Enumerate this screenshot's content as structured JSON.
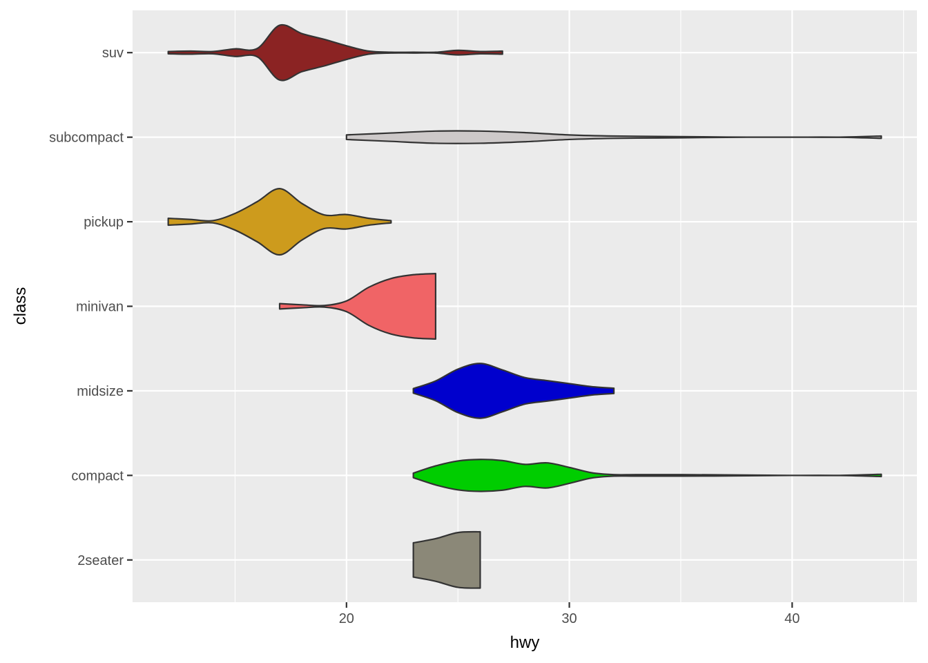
{
  "chart_data": {
    "type": "violin",
    "orientation": "horizontal",
    "xlabel": "hwy",
    "ylabel": "class",
    "xlim": [
      10.4,
      45.6
    ],
    "x_ticks": [
      20,
      30,
      40
    ],
    "grid": true,
    "background": "#ebebeb",
    "categories": [
      "2seater",
      "compact",
      "midsize",
      "minivan",
      "pickup",
      "subcompact",
      "suv"
    ],
    "series": [
      {
        "name": "2seater",
        "color": "#8b8878",
        "density": [
          [
            23,
            0.45
          ],
          [
            24,
            0.56
          ],
          [
            25,
            0.72
          ],
          [
            26,
            0.74
          ]
        ]
      },
      {
        "name": "compact",
        "color": "#00cd00",
        "density": [
          [
            23,
            0.06
          ],
          [
            24,
            0.25
          ],
          [
            25,
            0.38
          ],
          [
            26,
            0.42
          ],
          [
            27,
            0.39
          ],
          [
            28,
            0.29
          ],
          [
            29,
            0.33
          ],
          [
            30,
            0.21
          ],
          [
            31,
            0.07
          ],
          [
            32,
            0.02
          ],
          [
            33,
            0.02
          ],
          [
            35,
            0.02
          ],
          [
            38,
            0.01
          ],
          [
            40,
            0.0
          ],
          [
            42,
            0.0
          ],
          [
            44,
            0.03
          ]
        ]
      },
      {
        "name": "midsize",
        "color": "#0000cd",
        "density": [
          [
            23,
            0.06
          ],
          [
            24,
            0.26
          ],
          [
            25,
            0.57
          ],
          [
            26,
            0.72
          ],
          [
            27,
            0.55
          ],
          [
            28,
            0.35
          ],
          [
            29,
            0.27
          ],
          [
            30,
            0.19
          ],
          [
            31,
            0.11
          ],
          [
            32,
            0.07
          ]
        ]
      },
      {
        "name": "minivan",
        "color": "#f06466",
        "density": [
          [
            17,
            0.07
          ],
          [
            18,
            0.04
          ],
          [
            19,
            0.02
          ],
          [
            20,
            0.14
          ],
          [
            21,
            0.5
          ],
          [
            22,
            0.73
          ],
          [
            23,
            0.83
          ],
          [
            24,
            0.86
          ]
        ]
      },
      {
        "name": "pickup",
        "color": "#cd9b1d",
        "density": [
          [
            12,
            0.09
          ],
          [
            13,
            0.06
          ],
          [
            14,
            0.03
          ],
          [
            15,
            0.22
          ],
          [
            16,
            0.53
          ],
          [
            17,
            0.87
          ],
          [
            18,
            0.48
          ],
          [
            19,
            0.18
          ],
          [
            20,
            0.19
          ],
          [
            21,
            0.09
          ],
          [
            22,
            0.03
          ]
        ]
      },
      {
        "name": "subcompact",
        "color": "#cdc9c9",
        "density": [
          [
            20,
            0.06
          ],
          [
            22,
            0.11
          ],
          [
            24,
            0.16
          ],
          [
            26,
            0.16
          ],
          [
            28,
            0.12
          ],
          [
            30,
            0.06
          ],
          [
            32,
            0.03
          ],
          [
            34,
            0.02
          ],
          [
            36,
            0.01
          ],
          [
            38,
            0.0
          ],
          [
            40,
            0.0
          ],
          [
            42,
            0.0
          ],
          [
            44,
            0.03
          ]
        ]
      },
      {
        "name": "suv",
        "color": "#8b2323",
        "density": [
          [
            12,
            0.03
          ],
          [
            13,
            0.04
          ],
          [
            14,
            0.03
          ],
          [
            15,
            0.1
          ],
          [
            16,
            0.11
          ],
          [
            17,
            0.72
          ],
          [
            18,
            0.5
          ],
          [
            19,
            0.35
          ],
          [
            20,
            0.18
          ],
          [
            21,
            0.04
          ],
          [
            22,
            0.01
          ],
          [
            23,
            0.01
          ],
          [
            24,
            0.01
          ],
          [
            25,
            0.06
          ],
          [
            26,
            0.03
          ],
          [
            27,
            0.04
          ]
        ]
      }
    ]
  }
}
